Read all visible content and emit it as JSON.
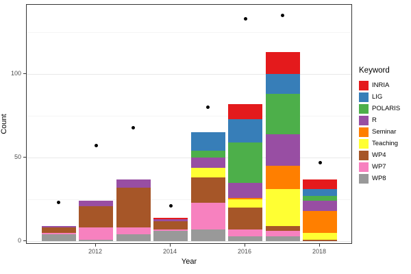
{
  "chart_data": {
    "type": "bar",
    "stacked": true,
    "overlay": "scatter",
    "xlabel": "Year",
    "ylabel": "Count",
    "categories": [
      "2011",
      "2012",
      "2013",
      "2014",
      "2015",
      "2016",
      "2017",
      "2018"
    ],
    "x_tick_labels": [
      "2012",
      "2014",
      "2016",
      "2018"
    ],
    "y_ticks": [
      0,
      50,
      100
    ],
    "y_minor_ticks": [
      25,
      75,
      125
    ],
    "ylim": [
      0,
      141
    ],
    "grid": true,
    "legend": {
      "title": "Keyword",
      "position": "right"
    },
    "series": [
      {
        "name": "INRIA",
        "color": "#E41A1C",
        "values": [
          0,
          0,
          0,
          1,
          0,
          9,
          13,
          6
        ]
      },
      {
        "name": "LIG",
        "color": "#377EB8",
        "values": [
          0,
          0,
          0,
          0,
          11,
          14,
          12,
          4
        ]
      },
      {
        "name": "POLARIS",
        "color": "#4DAF4A",
        "values": [
          0,
          0,
          0,
          0,
          4,
          24,
          24,
          3
        ]
      },
      {
        "name": "R",
        "color": "#984EA3",
        "values": [
          1,
          3,
          5,
          1,
          6,
          9,
          19,
          6
        ]
      },
      {
        "name": "Seminar",
        "color": "#FF7F00",
        "values": [
          0,
          0,
          0,
          0,
          0,
          1,
          14,
          13
        ]
      },
      {
        "name": "Teaching",
        "color": "#FFFF33",
        "values": [
          0,
          0,
          0,
          0,
          6,
          5,
          22,
          4
        ]
      },
      {
        "name": "WP4",
        "color": "#A65628",
        "values": [
          3,
          13,
          24,
          5,
          15,
          13,
          3,
          1
        ]
      },
      {
        "name": "WP7",
        "color": "#F781BF",
        "values": [
          1,
          7,
          4,
          1,
          16,
          4,
          3,
          0
        ]
      },
      {
        "name": "WP8",
        "color": "#999999",
        "values": [
          4,
          1,
          4,
          6,
          7,
          3,
          3,
          0
        ]
      }
    ],
    "points": {
      "name": "total-points",
      "color": "#000000",
      "values": [
        23,
        57,
        68,
        21,
        80,
        133,
        135,
        47
      ]
    },
    "bar_totals": [
      9,
      24,
      37,
      14,
      65,
      82,
      113,
      37
    ]
  },
  "colors": {
    "panel_border": "#333333",
    "grid_major": "#e8e8e8",
    "grid_minor": "#f4f4f4",
    "tick_label": "#4d4d4d",
    "background": "#ffffff"
  }
}
